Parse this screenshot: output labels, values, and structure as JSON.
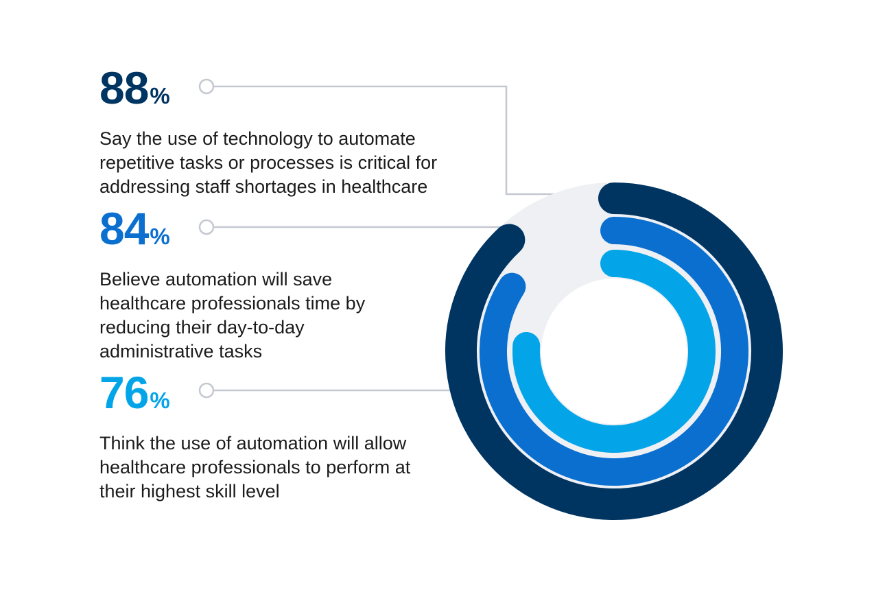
{
  "chart_data": {
    "type": "radial-bar",
    "unit": "%",
    "max": 100,
    "series": [
      {
        "value": 88,
        "description": "Say the use of technology to automate repetitive tasks or processes is critical for addressing staff shortages in healthcare",
        "color": "#003461"
      },
      {
        "value": 84,
        "description": "Believe automation will save healthcare professionals time by reducing their day-to-day administrative tasks",
        "color": "#0a6fcf"
      },
      {
        "value": 76,
        "description": "Think the use of automation will allow healthcare professionals to perform at their highest skill level",
        "color": "#03a5e8"
      }
    ]
  },
  "colors": {
    "track": "#eef0f4",
    "connector": "#c4c8d0",
    "background": "#ffffff"
  }
}
